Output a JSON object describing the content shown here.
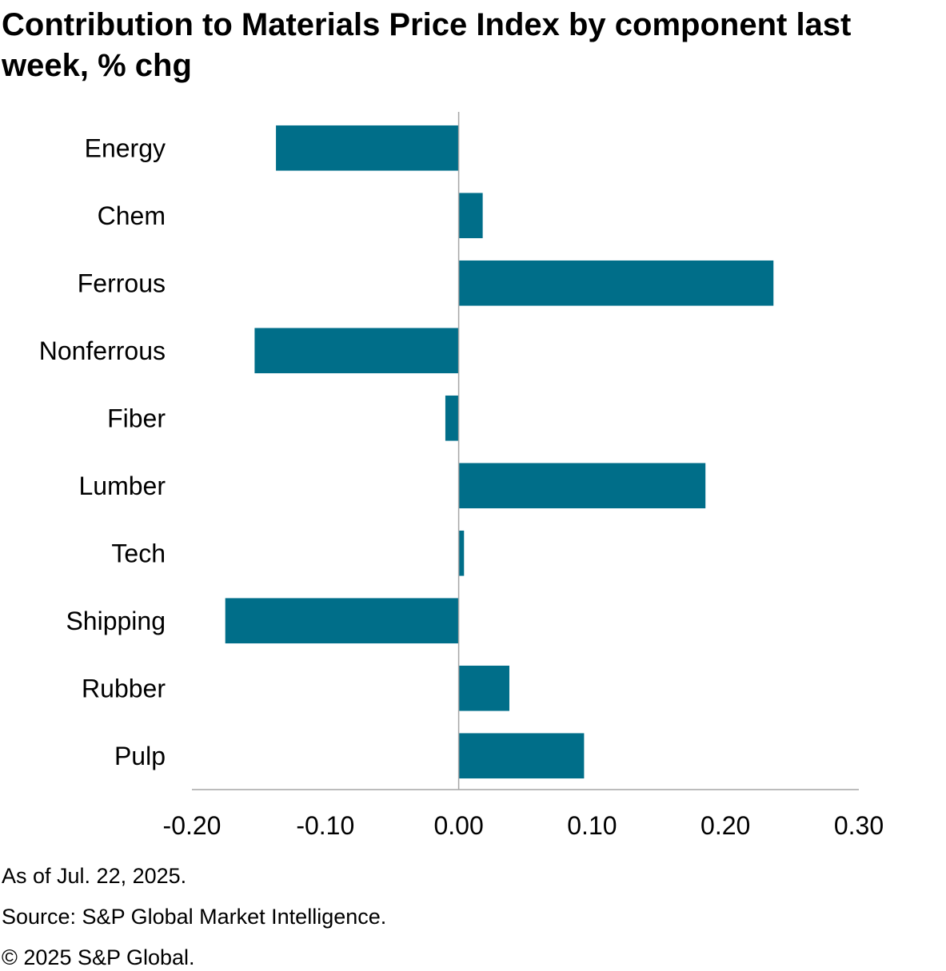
{
  "chart_data": {
    "type": "bar",
    "orientation": "horizontal",
    "title": "Contribution to Materials Price Index by component last week, % chg",
    "categories": [
      "Energy",
      "Chem",
      "Ferrous",
      "Nonferrous",
      "Fiber",
      "Lumber",
      "Tech",
      "Shipping",
      "Rubber",
      "Pulp"
    ],
    "values": [
      -0.137,
      0.018,
      0.236,
      -0.153,
      -0.01,
      0.185,
      0.004,
      -0.175,
      0.038,
      0.094
    ],
    "xlim": [
      -0.2,
      0.3
    ],
    "xticks": [
      -0.2,
      -0.1,
      0.0,
      0.1,
      0.2,
      0.3
    ],
    "xtick_labels": [
      "-0.20",
      "-0.10",
      "0.00",
      "0.10",
      "0.20",
      "0.30"
    ],
    "xlabel": "",
    "ylabel": "",
    "grid": false,
    "legend": "none",
    "bar_color": "#006e89"
  },
  "footnotes": {
    "as_of": "As of Jul. 22, 2025.",
    "source": "Source: S&P Global Market Intelligence.",
    "copyright": "© 2025 S&P Global."
  }
}
